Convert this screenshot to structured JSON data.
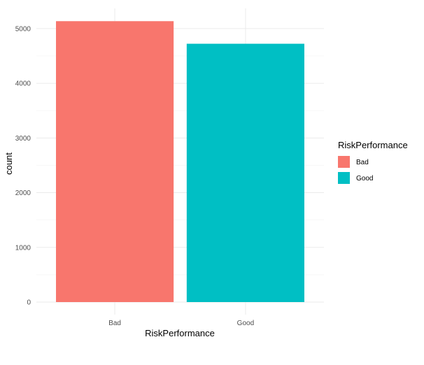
{
  "chart_data": {
    "type": "bar",
    "title": "",
    "xlabel": "RiskPerformance",
    "ylabel": "count",
    "categories": [
      "Bad",
      "Good"
    ],
    "values": [
      5136,
      4723
    ],
    "colors": [
      "#F8766D",
      "#00BFC4"
    ],
    "ylim": [
      0,
      5280
    ],
    "yticks": [
      0,
      1000,
      2000,
      3000,
      4000,
      5000
    ],
    "grid": true,
    "legend": {
      "title": "RiskPerformance",
      "position": "right",
      "entries": [
        "Bad",
        "Good"
      ]
    }
  }
}
